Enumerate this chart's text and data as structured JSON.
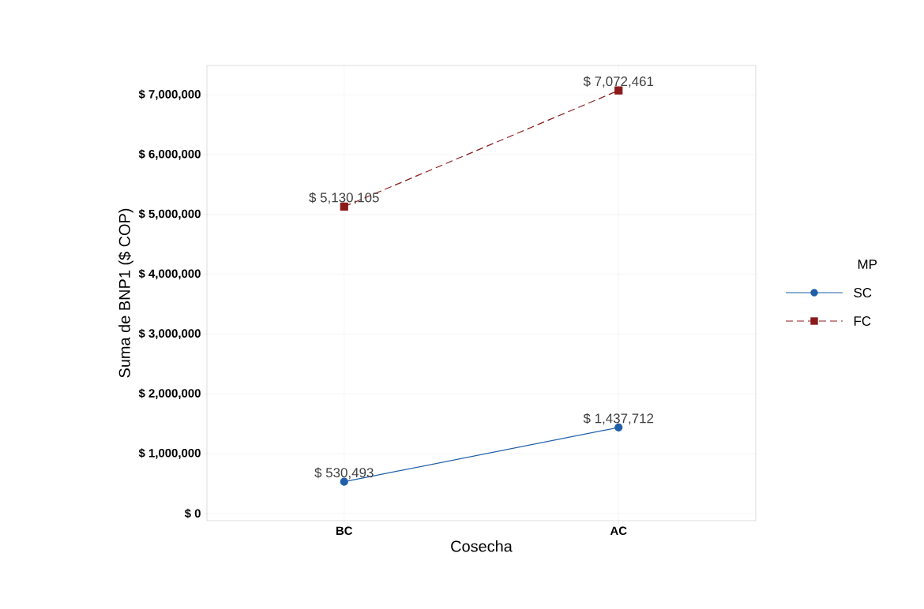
{
  "chart_data": {
    "type": "line",
    "xlabel": "Cosecha",
    "ylabel": "Suma de BNP1 ($ COP)",
    "legend_title": "MP",
    "categories": [
      "BC",
      "AC"
    ],
    "series": [
      {
        "name": "SC",
        "color": "#1f5fa8",
        "marker": "circle",
        "line_style": "solid",
        "values": [
          530493,
          1437712
        ],
        "value_labels": [
          "$ 530,493",
          "$ 1,437,712"
        ]
      },
      {
        "name": "FC",
        "color": "#8b1a1a",
        "marker": "square",
        "line_style": "dashed",
        "values": [
          5130105,
          7072461
        ],
        "value_labels": [
          "$ 5,130,105",
          "$ 7,072,461"
        ]
      }
    ],
    "ylim": [
      -120000,
      7490000
    ],
    "yticks": [
      {
        "value": 0,
        "label": "$ 0"
      },
      {
        "value": 1000000,
        "label": "$ 1,000,000"
      },
      {
        "value": 2000000,
        "label": "$ 2,000,000"
      },
      {
        "value": 3000000,
        "label": "$ 3,000,000"
      },
      {
        "value": 4000000,
        "label": "$ 4,000,000"
      },
      {
        "value": 5000000,
        "label": "$ 5,000,000"
      },
      {
        "value": 6000000,
        "label": "$ 6,000,000"
      },
      {
        "value": 7000000,
        "label": "$ 7,000,000"
      }
    ],
    "grid": true,
    "legend": "right"
  }
}
